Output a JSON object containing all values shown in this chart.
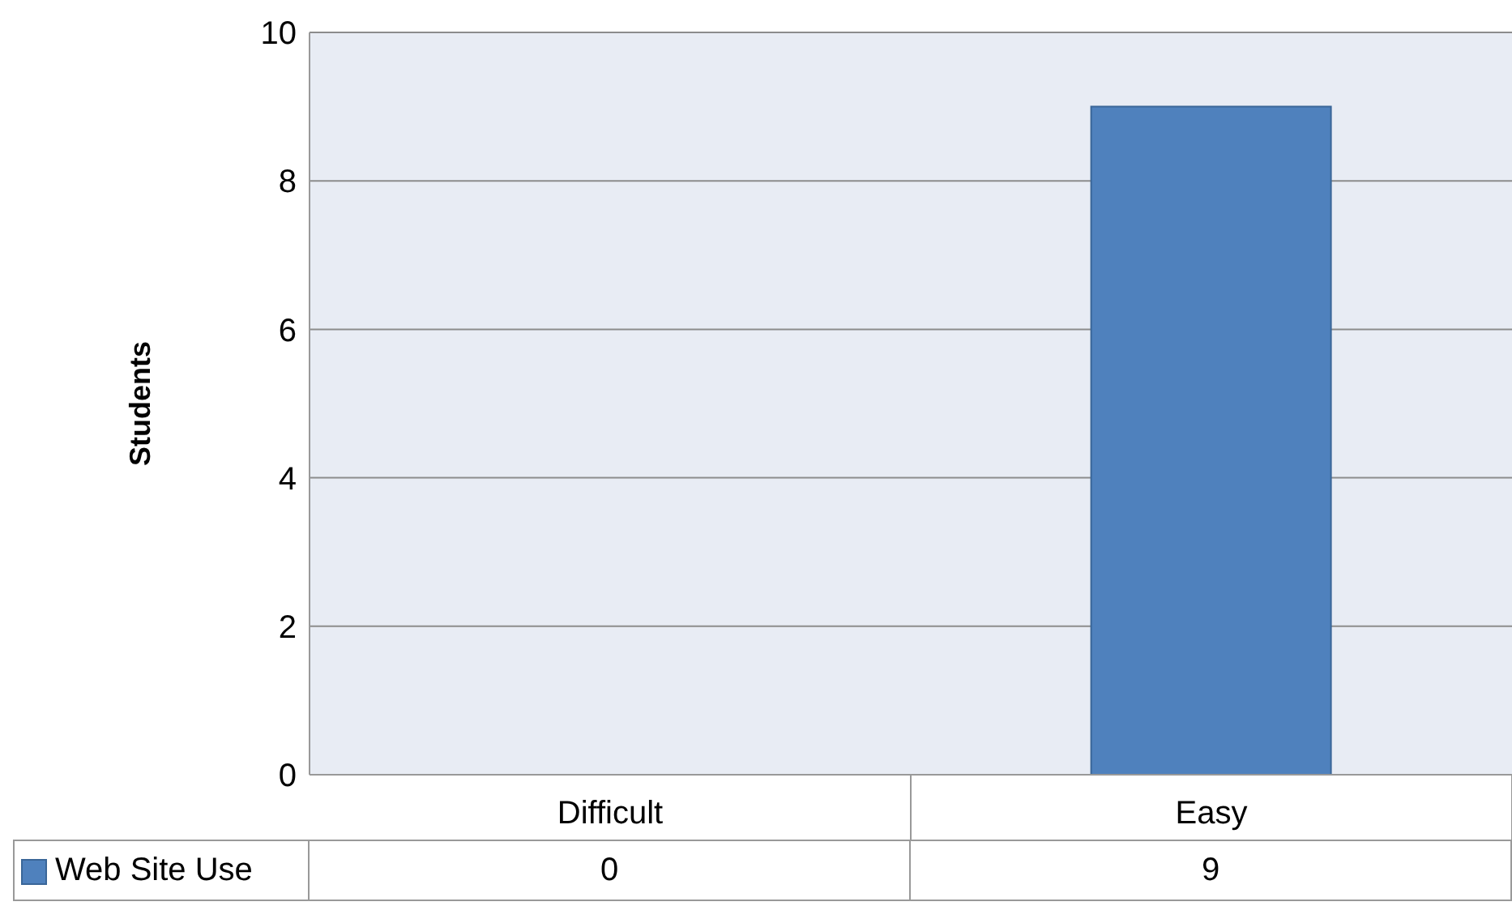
{
  "chart_data": {
    "type": "bar",
    "ylabel": "Students",
    "categories": [
      "Difficult",
      "Easy"
    ],
    "series": [
      {
        "name": "Web Site Use",
        "color": "#4f81bd",
        "values": [
          0,
          9
        ]
      }
    ],
    "ylim": [
      0,
      10
    ],
    "yticks": [
      0,
      2,
      4,
      6,
      8,
      10
    ],
    "grid": "y",
    "legend": "bottom left",
    "data_labels": true
  }
}
